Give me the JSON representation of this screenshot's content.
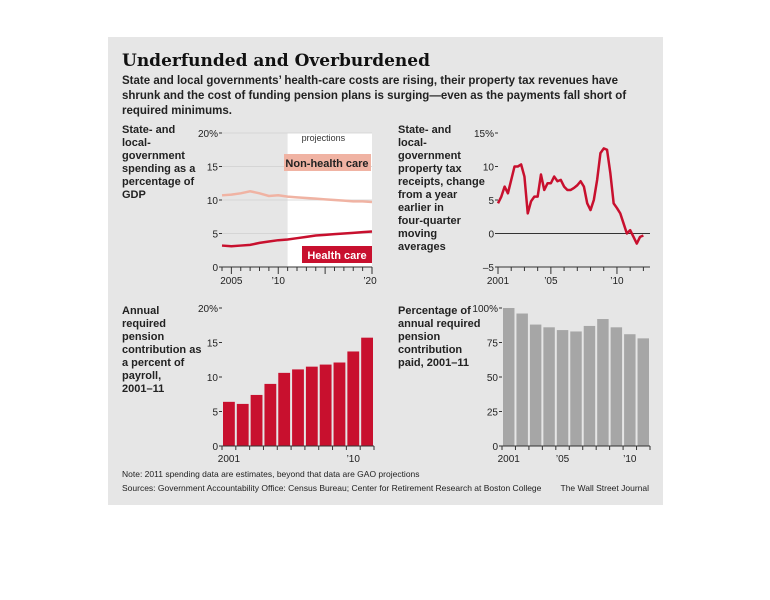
{
  "title": "Underfunded and Overburdened",
  "subtitle": "State and local governments’ health-care costs are rising, their property tax revenues have shrunk and the cost of funding pension plans is surging—even as the payments fall short of required minimums.",
  "note": "Note: 2011 spending data are estimates, beyond that data are GAO projections",
  "sources": "Sources: Government Accountability Office: Census Bureau; Center for Retirement Research at Boston College",
  "credit": "The Wall Street Journal",
  "colors": {
    "health": "#c8102e",
    "nonhealth": "#f0b3a3",
    "grey_bar": "#a6a6a6",
    "dark_red_bar": "#c8102e"
  },
  "chart_data": [
    {
      "type": "line",
      "label": "State- and local-government spending as a percentage of GDP",
      "label_lines": [
        "State- and",
        "local-",
        "government",
        "spending as a",
        "percentage of",
        "GDP"
      ],
      "ylim": [
        0,
        20
      ],
      "yticks": [
        "0",
        "5",
        "10",
        "15",
        "20%"
      ],
      "xlim": [
        2004,
        2020
      ],
      "xtick_labels": [
        {
          "x": 2005,
          "text": "2005"
        },
        {
          "x": 2010,
          "text": "’10"
        },
        {
          "x": 2020,
          "text": "’20"
        }
      ],
      "projection_start": 2011,
      "projection_label": "projections",
      "series": [
        {
          "name": "Non-health care",
          "color": "#f0b3a3",
          "x": [
            2004,
            2005,
            2006,
            2007,
            2008,
            2009,
            2010,
            2011,
            2012,
            2013,
            2014,
            2015,
            2016,
            2017,
            2018,
            2019,
            2020
          ],
          "values": [
            10.7,
            10.8,
            11.0,
            11.3,
            11.0,
            10.6,
            10.7,
            10.5,
            10.4,
            10.3,
            10.2,
            10.1,
            10.0,
            9.9,
            9.8,
            9.8,
            9.7
          ]
        },
        {
          "name": "Health care",
          "color": "#c8102e",
          "x": [
            2004,
            2005,
            2006,
            2007,
            2008,
            2009,
            2010,
            2011,
            2012,
            2013,
            2014,
            2015,
            2016,
            2017,
            2018,
            2019,
            2020
          ],
          "values": [
            3.2,
            3.1,
            3.2,
            3.3,
            3.6,
            3.8,
            4.0,
            4.1,
            4.3,
            4.5,
            4.7,
            4.8,
            4.9,
            5.0,
            5.1,
            5.2,
            5.3
          ]
        }
      ]
    },
    {
      "type": "line",
      "label": "State- and local-government property tax receipts, change from a year earlier in four-quarter moving averages",
      "label_lines": [
        "State- and",
        "local-",
        "government",
        "property tax",
        "receipts, change",
        "from a year",
        "earlier in",
        "four-quarter",
        "moving",
        "averages"
      ],
      "ylim": [
        -5,
        15
      ],
      "yticks": [
        "–5",
        "0",
        "5",
        "10",
        "15%"
      ],
      "xlim": [
        2001,
        2012.5
      ],
      "xtick_labels": [
        {
          "x": 2001,
          "text": "2001"
        },
        {
          "x": 2005,
          "text": "’05"
        },
        {
          "x": 2010,
          "text": "’10"
        }
      ],
      "series": [
        {
          "name": "",
          "color": "#c8102e",
          "x": [
            2001,
            2001.25,
            2001.5,
            2001.75,
            2002,
            2002.25,
            2002.5,
            2002.75,
            2003,
            2003.25,
            2003.5,
            2003.75,
            2004,
            2004.25,
            2004.5,
            2004.75,
            2005,
            2005.25,
            2005.5,
            2005.75,
            2006,
            2006.25,
            2006.5,
            2006.75,
            2007,
            2007.25,
            2007.5,
            2007.75,
            2008,
            2008.25,
            2008.5,
            2008.75,
            2009,
            2009.25,
            2009.5,
            2009.75,
            2010,
            2010.25,
            2010.5,
            2010.75,
            2011,
            2011.25,
            2011.5,
            2011.75,
            2012
          ],
          "values": [
            4.5,
            5.5,
            7,
            6,
            8,
            10,
            10,
            10.3,
            8.5,
            3,
            4.8,
            5.5,
            5.5,
            8.8,
            6.5,
            7.5,
            7.5,
            8.5,
            7.8,
            8,
            7,
            6.5,
            6.5,
            6.8,
            7.2,
            7.8,
            7,
            4.5,
            3.5,
            5,
            8,
            12,
            12.7,
            12.5,
            9,
            4.5,
            3.8,
            3,
            1.5,
            0,
            0.5,
            -0.5,
            -1.5,
            -0.5,
            -0.3
          ]
        }
      ]
    },
    {
      "type": "bar",
      "label": "Annual required pension contribution as a percent of payroll, 2001–11",
      "label_lines": [
        "Annual",
        "required",
        "pension",
        "contribution as",
        "a percent of",
        "payroll,",
        "2001–11"
      ],
      "ylim": [
        0,
        20
      ],
      "yticks": [
        "0",
        "5",
        "10",
        "15",
        "20%"
      ],
      "categories": [
        "2001",
        "2002",
        "2003",
        "2004",
        "2005",
        "2006",
        "2007",
        "2008",
        "2009",
        "2010",
        "2011"
      ],
      "xtick_labels": [
        {
          "index": 0,
          "text": "2001"
        },
        {
          "index": 9,
          "text": "’10"
        }
      ],
      "color": "#c8102e",
      "values": [
        6.4,
        6.1,
        7.4,
        9.0,
        10.6,
        11.1,
        11.5,
        11.8,
        12.1,
        13.7,
        15.7
      ]
    },
    {
      "type": "bar",
      "label": "Percentage of annual required pension contribution paid, 2001–11",
      "label_lines": [
        "Percentage of",
        "annual required",
        "pension",
        "contribution",
        "paid, 2001–11"
      ],
      "ylim": [
        0,
        100
      ],
      "yticks": [
        "0",
        "25",
        "50",
        "75",
        "100%"
      ],
      "categories": [
        "2001",
        "2002",
        "2003",
        "2004",
        "2005",
        "2006",
        "2007",
        "2008",
        "2009",
        "2010",
        "2011"
      ],
      "xtick_labels": [
        {
          "index": 0,
          "text": "2001"
        },
        {
          "index": 4,
          "text": "’05"
        },
        {
          "index": 9,
          "text": "’10"
        }
      ],
      "color": "#a6a6a6",
      "values": [
        100,
        96,
        88,
        86,
        84,
        83,
        87,
        92,
        86,
        81,
        78
      ]
    }
  ]
}
